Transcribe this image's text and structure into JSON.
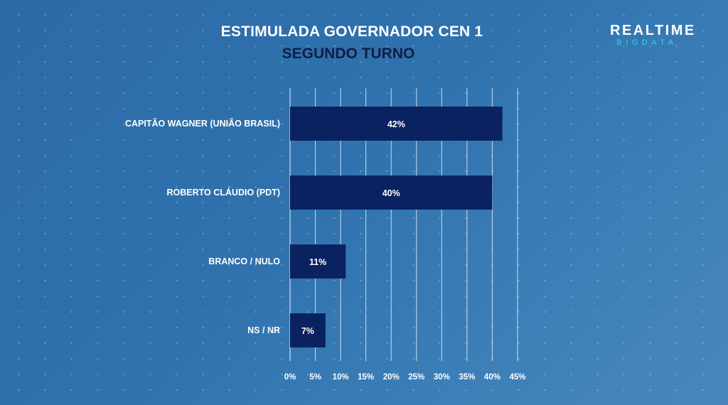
{
  "title": "ESTIMULADA GOVERNADOR CEN 1",
  "subtitle": "SEGUNDO TURNO",
  "logo": {
    "top": "REALTIME",
    "bottom": "BIGDATA"
  },
  "colors": {
    "bar": "#0b2260",
    "gridline": "#ffffff",
    "text": "#ffffff",
    "subtitle": "#0f1f44",
    "logo_accent": "#31d2f2"
  },
  "chart_data": {
    "type": "bar",
    "orientation": "horizontal",
    "title": "ESTIMULADA GOVERNADOR CEN 1",
    "subtitle": "SEGUNDO TURNO",
    "categories": [
      "CAPITÃO WAGNER (UNIÃO BRASIL)",
      "ROBERTO CLÁUDIO (PDT)",
      "BRANCO / NULO",
      "NS / NR"
    ],
    "values": [
      42,
      40,
      11,
      7
    ],
    "data_labels": [
      "42%",
      "40%",
      "11%",
      "7%"
    ],
    "xlim": [
      0,
      45
    ],
    "xticks": [
      0,
      5,
      10,
      15,
      20,
      25,
      30,
      35,
      40,
      45
    ],
    "xtick_labels": [
      "0%",
      "5%",
      "10%",
      "15%",
      "20%",
      "25%",
      "30%",
      "35%",
      "40%",
      "45%"
    ],
    "grid": "vertical",
    "legend": "none"
  }
}
